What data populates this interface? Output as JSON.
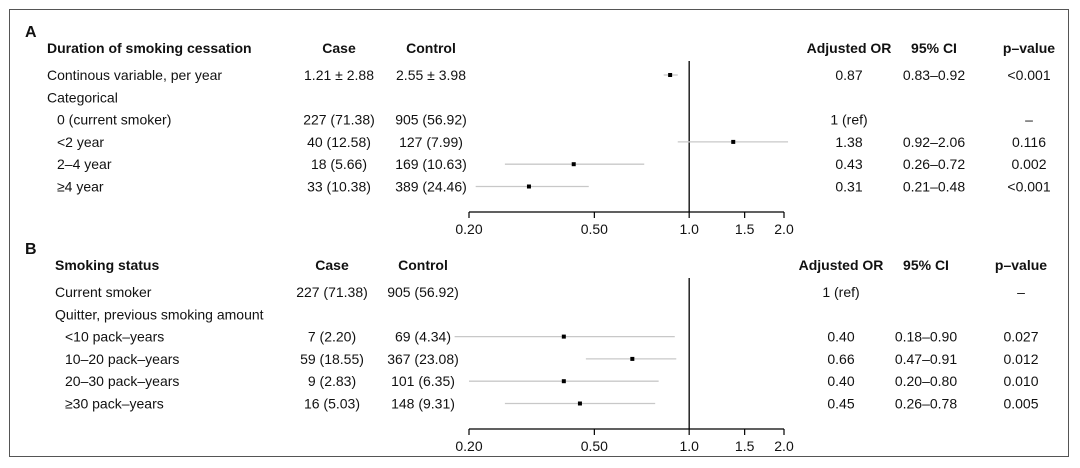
{
  "chart_data": [
    {
      "type": "forest",
      "panel": "A",
      "headers": {
        "label": "Duration of smoking cessation",
        "case": "Case",
        "control": "Control",
        "or": "Adjusted OR",
        "ci": "95% CI",
        "p": "p–value"
      },
      "rows": [
        {
          "label": "Continous variable, per year",
          "indent": 0,
          "case": "1.21 ± 2.88",
          "control": "2.55 ± 3.98",
          "or_text": "0.87",
          "ci_text": "0.83–0.92",
          "p_text": "<0.001",
          "or": 0.87,
          "lo": 0.83,
          "hi": 0.92
        },
        {
          "label": "Categorical",
          "indent": 0,
          "case": "",
          "control": "",
          "or_text": "",
          "ci_text": "",
          "p_text": ""
        },
        {
          "label": "0 (current smoker)",
          "indent": 1,
          "case": "227 (71.38)",
          "control": "905 (56.92)",
          "or_text": "1 (ref)",
          "ci_text": "",
          "p_text": "–"
        },
        {
          "label": "<2 year",
          "indent": 1,
          "case": "40 (12.58)",
          "control": "127 (7.99)",
          "or_text": "1.38",
          "ci_text": "0.92–2.06",
          "p_text": "0.116",
          "or": 1.38,
          "lo": 0.92,
          "hi": 2.06
        },
        {
          "label": "2–4 year",
          "indent": 1,
          "case": "18 (5.66)",
          "control": "169 (10.63)",
          "or_text": "0.43",
          "ci_text": "0.26–0.72",
          "p_text": "0.002",
          "or": 0.43,
          "lo": 0.26,
          "hi": 0.72
        },
        {
          "label": "≥4 year",
          "indent": 1,
          "case": "33 (10.38)",
          "control": "389 (24.46)",
          "or_text": "0.31",
          "ci_text": "0.21–0.48",
          "p_text": "<0.001",
          "or": 0.31,
          "lo": 0.21,
          "hi": 0.48
        }
      ],
      "x_scale": "log",
      "xlim": [
        0.2,
        2.0
      ],
      "ticks": [
        0.2,
        0.5,
        1.0,
        1.5,
        2.0
      ],
      "tick_labels": [
        "0.20",
        "0.50",
        "1.0",
        "1.5",
        "2.0"
      ],
      "reference_line": 1.0
    },
    {
      "type": "forest",
      "panel": "B",
      "headers": {
        "label": "Smoking status",
        "case": "Case",
        "control": "Control",
        "or": "Adjusted OR",
        "ci": "95% CI",
        "p": "p–value"
      },
      "rows": [
        {
          "label": "Current smoker",
          "indent": 0,
          "case": "227 (71.38)",
          "control": "905 (56.92)",
          "or_text": "1 (ref)",
          "ci_text": "",
          "p_text": "–"
        },
        {
          "label": "Quitter, previous smoking amount",
          "indent": 0,
          "case": "",
          "control": "",
          "or_text": "",
          "ci_text": "",
          "p_text": ""
        },
        {
          "label": "<10 pack–years",
          "indent": 1,
          "case": "7 (2.20)",
          "control": "69 (4.34)",
          "or_text": "0.40",
          "ci_text": "0.18–0.90",
          "p_text": "0.027",
          "or": 0.4,
          "lo": 0.18,
          "hi": 0.9
        },
        {
          "label": "10–20 pack–years",
          "indent": 1,
          "case": "59 (18.55)",
          "control": "367 (23.08)",
          "or_text": "0.66",
          "ci_text": "0.47–0.91",
          "p_text": "0.012",
          "or": 0.66,
          "lo": 0.47,
          "hi": 0.91
        },
        {
          "label": "20–30 pack–years",
          "indent": 1,
          "case": "9 (2.83)",
          "control": "101 (6.35)",
          "or_text": "0.40",
          "ci_text": "0.20–0.80",
          "p_text": "0.010",
          "or": 0.4,
          "lo": 0.2,
          "hi": 0.8
        },
        {
          "label": "≥30 pack–years",
          "indent": 1,
          "case": "16 (5.03)",
          "control": "148 (9.31)",
          "or_text": "0.45",
          "ci_text": "0.26–0.78",
          "p_text": "0.005",
          "or": 0.45,
          "lo": 0.26,
          "hi": 0.78
        }
      ],
      "x_scale": "log",
      "xlim": [
        0.2,
        2.0
      ],
      "ticks": [
        0.2,
        0.5,
        1.0,
        1.5,
        2.0
      ],
      "tick_labels": [
        "0.20",
        "0.50",
        "1.0",
        "1.5",
        "2.0"
      ],
      "reference_line": 1.0
    }
  ],
  "colors": {
    "ci_line": "#c8c8c8",
    "point": "#000000",
    "axis": "#000000",
    "text": "#111111"
  }
}
